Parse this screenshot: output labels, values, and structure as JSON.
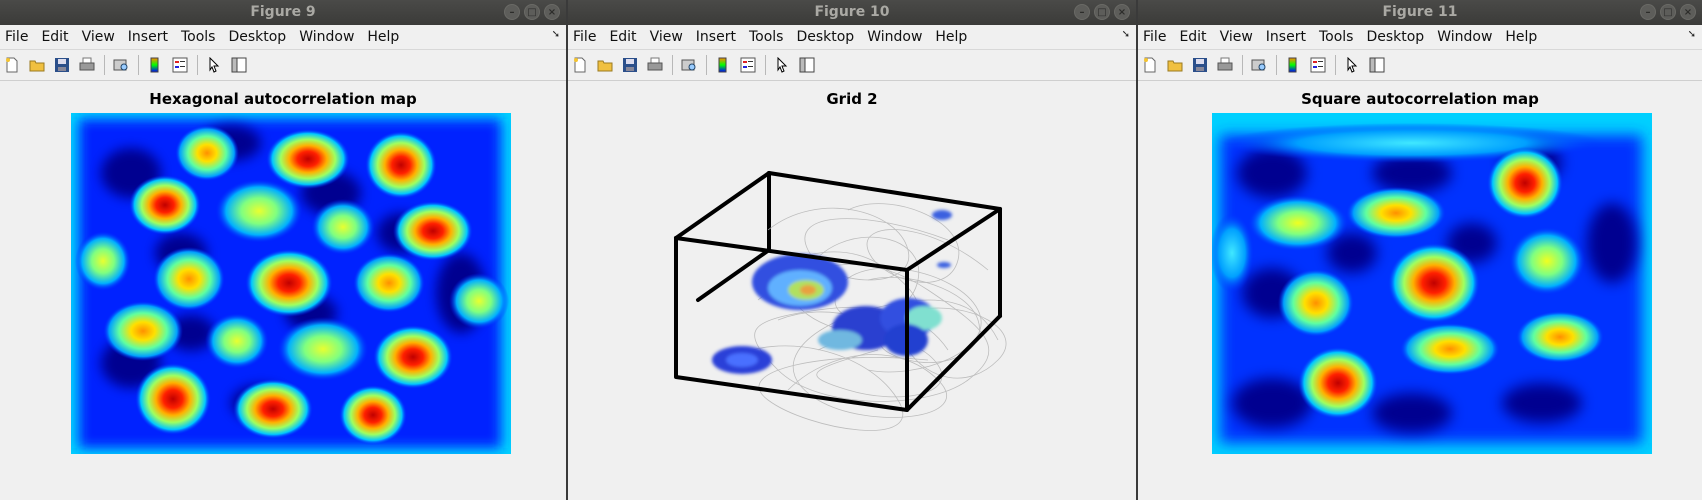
{
  "menu_items": [
    "File",
    "Edit",
    "View",
    "Insert",
    "Tools",
    "Desktop",
    "Window",
    "Help"
  ],
  "toolbar_icons": [
    "new-file-icon",
    "open-folder-icon",
    "save-icon",
    "print-icon",
    "print-preview-icon",
    "colorbar-icon",
    "legend-icon",
    "pointer-icon",
    "property-editor-icon"
  ],
  "window_controls": [
    "minimize-icon",
    "maximize-icon",
    "close-icon"
  ],
  "colors": {
    "titlebar": "#3f3f3d",
    "jet_low": "#00008f",
    "jet_high": "#800000"
  },
  "windows": [
    {
      "title": "Figure 9",
      "plot_title": "Hexagonal autocorrelation map"
    },
    {
      "title": "Figure 10",
      "plot_title": "Grid 2"
    },
    {
      "title": "Figure 11",
      "plot_title": "Square autocorrelation map"
    }
  ]
}
